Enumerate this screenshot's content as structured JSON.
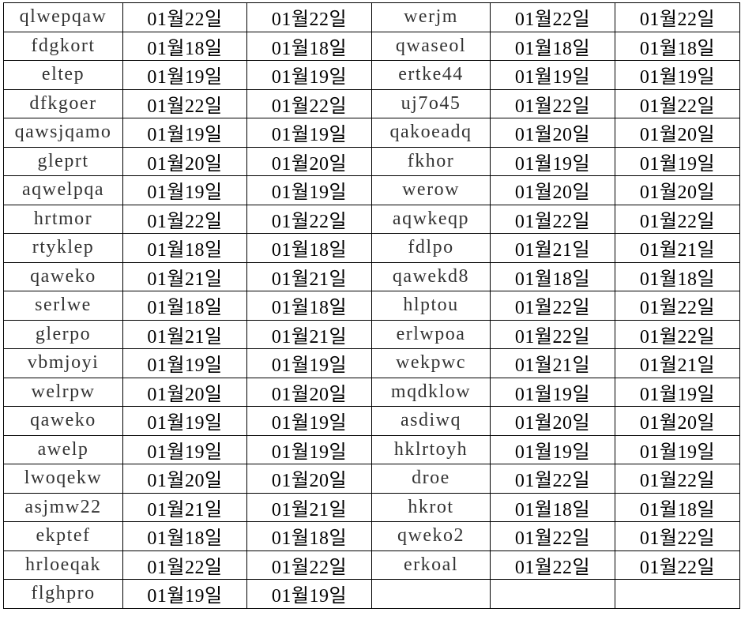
{
  "left_block": [
    [
      "qlwepqaw",
      "01월22일",
      "01월22일"
    ],
    [
      "fdgkort",
      "01월18일",
      "01월18일"
    ],
    [
      "eltep",
      "01월19일",
      "01월19일"
    ],
    [
      "dfkgoer",
      "01월22일",
      "01월22일"
    ],
    [
      "qawsjqamo",
      "01월19일",
      "01월19일"
    ],
    [
      "gleprt",
      "01월20일",
      "01월20일"
    ],
    [
      "aqwelpqa",
      "01월19일",
      "01월19일"
    ],
    [
      "hrtmor",
      "01월22일",
      "01월22일"
    ],
    [
      "rtyklep",
      "01월18일",
      "01월18일"
    ],
    [
      "qaweko",
      "01월21일",
      "01월21일"
    ],
    [
      "serlwe",
      "01월18일",
      "01월18일"
    ],
    [
      "glerpo",
      "01월21일",
      "01월21일"
    ],
    [
      "vbmjoyi",
      "01월19일",
      "01월19일"
    ],
    [
      "welrpw",
      "01월20일",
      "01월20일"
    ],
    [
      "qaweko",
      "01월19일",
      "01월19일"
    ],
    [
      "awelp",
      "01월19일",
      "01월19일"
    ],
    [
      "lwoqekw",
      "01월20일",
      "01월20일"
    ],
    [
      "asjmw22",
      "01월21일",
      "01월21일"
    ],
    [
      "ekptef",
      "01월18일",
      "01월18일"
    ],
    [
      "hrloeqak",
      "01월22일",
      "01월22일"
    ],
    [
      "flghpro",
      "01월19일",
      "01월19일"
    ]
  ],
  "right_block": [
    [
      "werjm",
      "01월22일",
      "01월22일"
    ],
    [
      "qwaseol",
      "01월18일",
      "01월18일"
    ],
    [
      "ertke44",
      "01월19일",
      "01월19일"
    ],
    [
      "uj7o45",
      "01월22일",
      "01월22일"
    ],
    [
      "qakoeadq",
      "01월20일",
      "01월20일"
    ],
    [
      "fkhor",
      "01월19일",
      "01월19일"
    ],
    [
      "werow",
      "01월20일",
      "01월20일"
    ],
    [
      "aqwkeqp",
      "01월22일",
      "01월22일"
    ],
    [
      "fdlpo",
      "01월21일",
      "01월21일"
    ],
    [
      "qawekd8",
      "01월18일",
      "01월18일"
    ],
    [
      "hlptou",
      "01월22일",
      "01월22일"
    ],
    [
      "erlwpoa",
      "01월22일",
      "01월22일"
    ],
    [
      "wekpwc",
      "01월21일",
      "01월21일"
    ],
    [
      "mqdklow",
      "01월19일",
      "01월19일"
    ],
    [
      "asdiwq",
      "01월20일",
      "01월20일"
    ],
    [
      "hklrtoyh",
      "01월19일",
      "01월19일"
    ],
    [
      "droe",
      "01월22일",
      "01월22일"
    ],
    [
      "hkrot",
      "01월18일",
      "01월18일"
    ],
    [
      "qweko2",
      "01월22일",
      "01월22일"
    ],
    [
      "erkoal",
      "01월22일",
      "01월22일"
    ],
    [
      "",
      "",
      ""
    ]
  ]
}
